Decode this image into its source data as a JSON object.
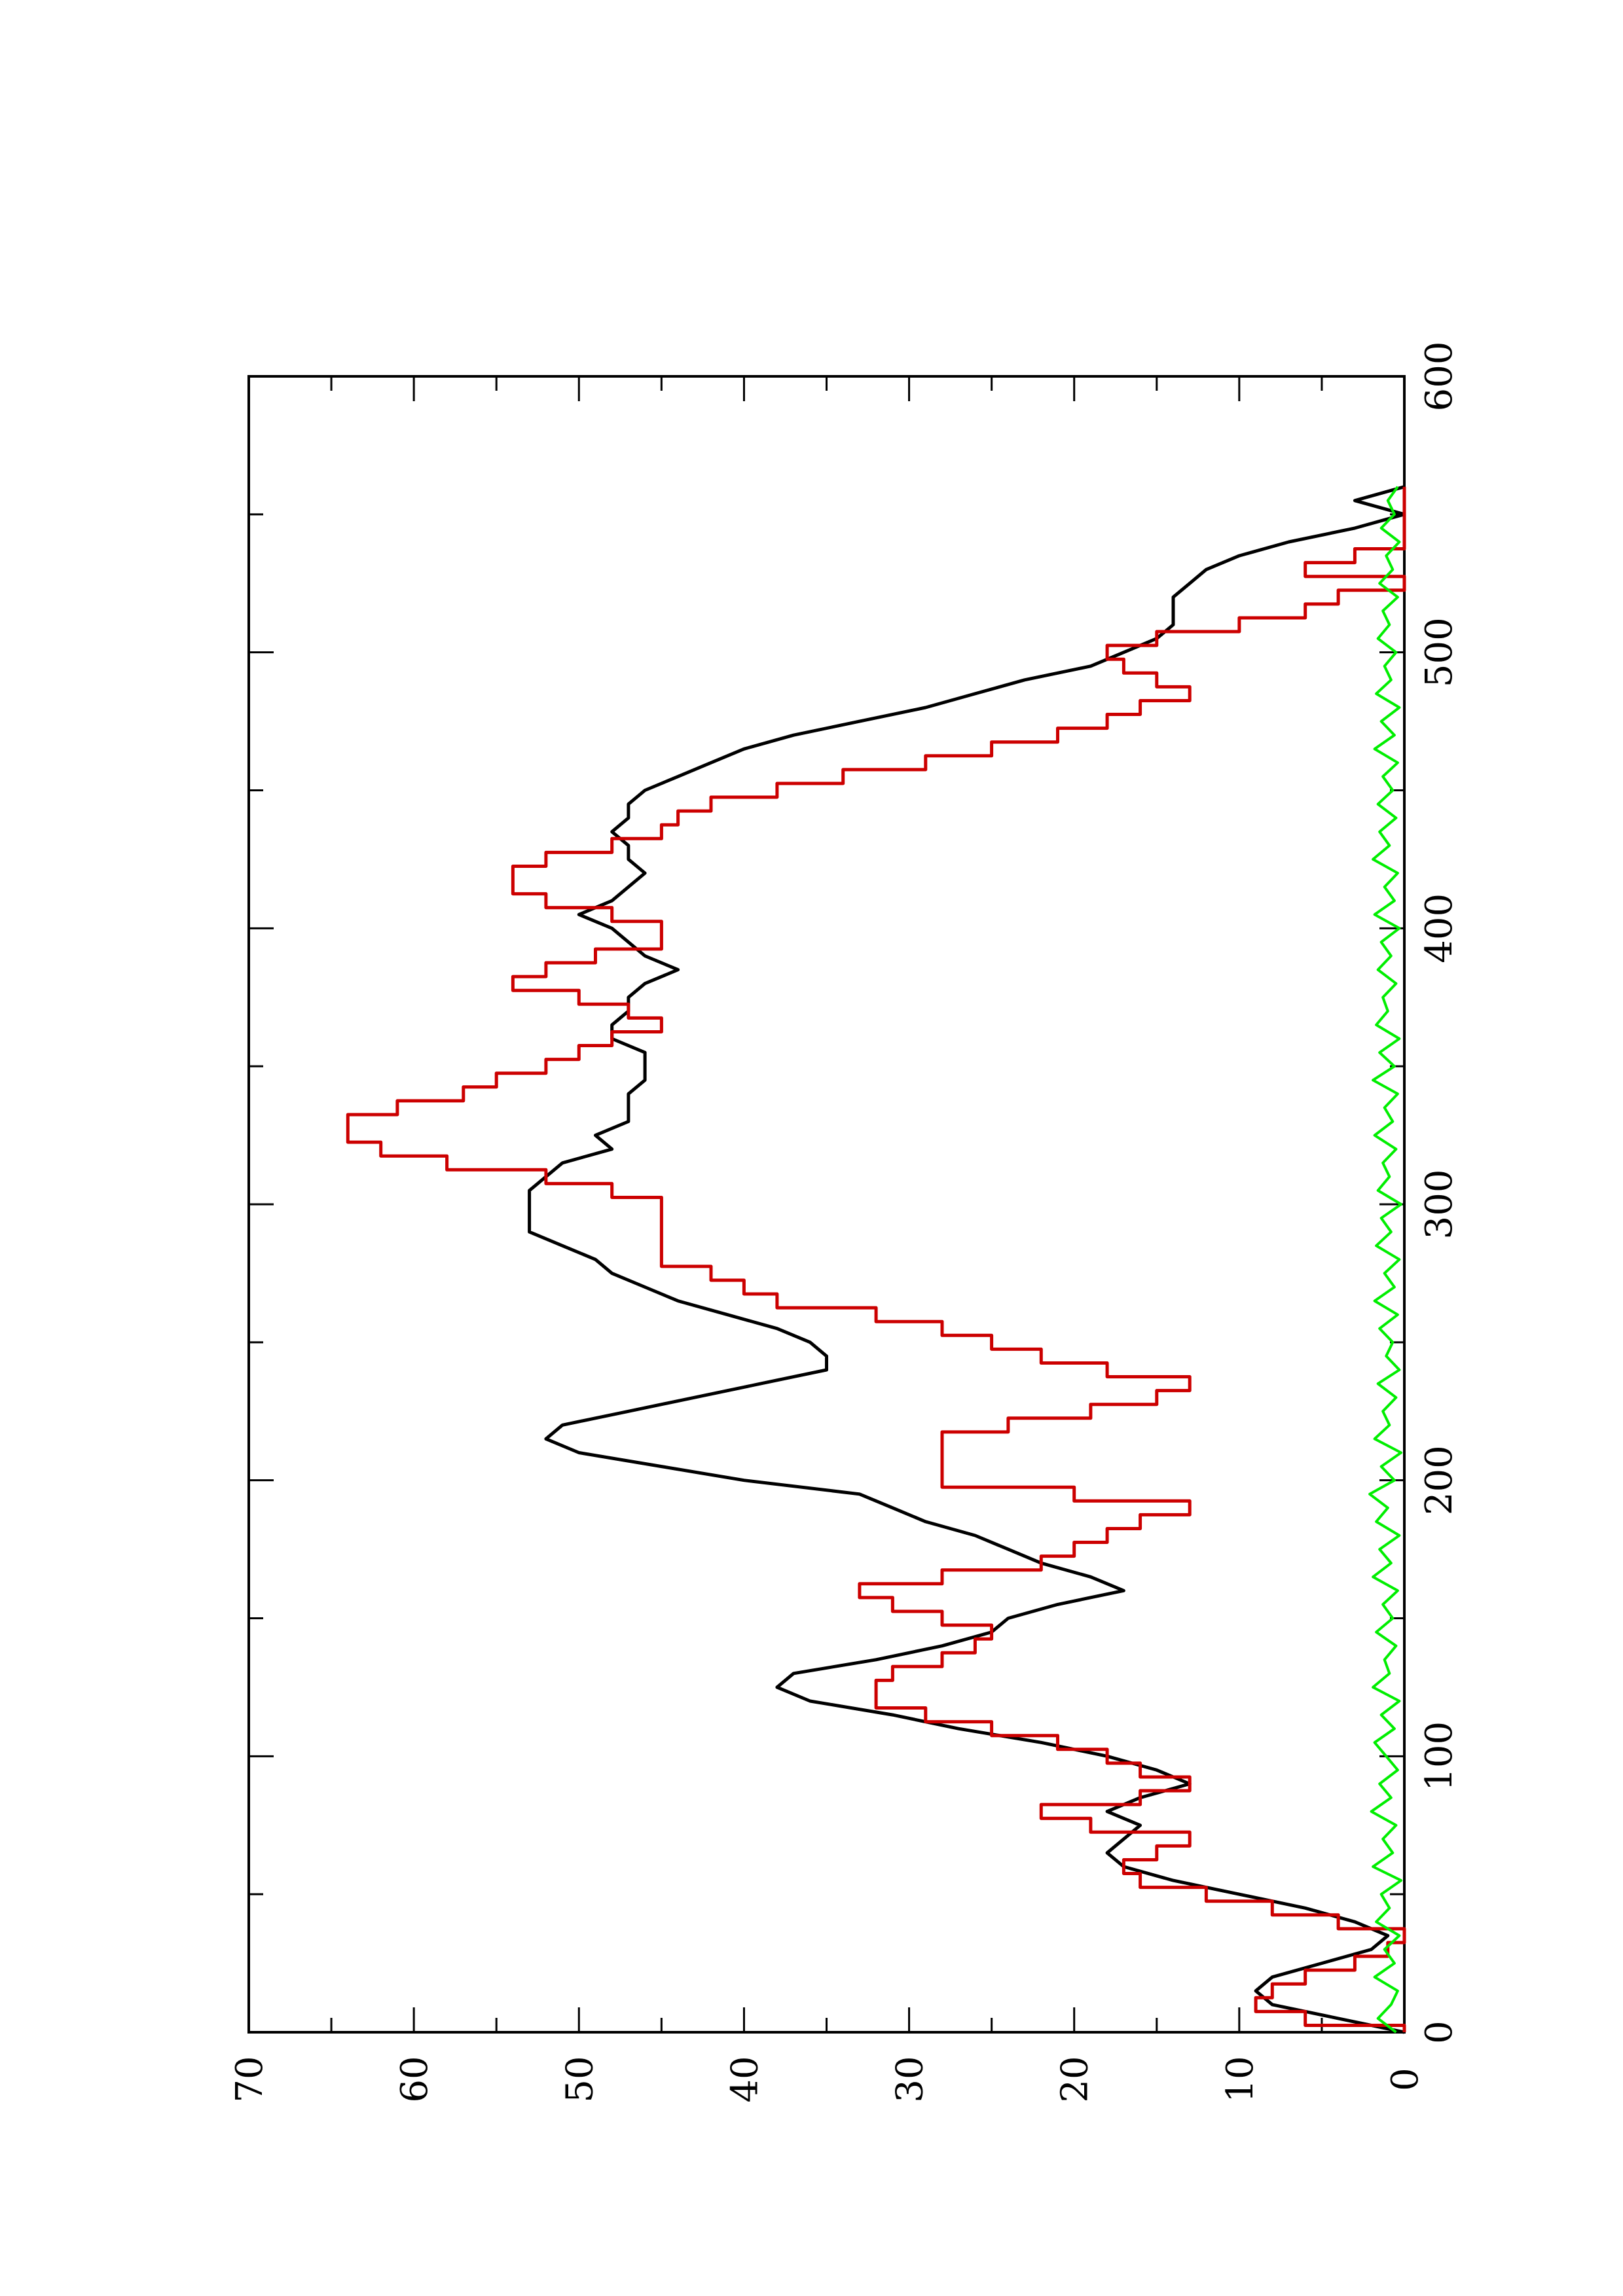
{
  "chart_data": {
    "type": "line",
    "orientation": "rotated-90-ccw",
    "title": "",
    "xlabel": "",
    "ylabel": "",
    "xlim": [
      0,
      600
    ],
    "ylim": [
      0,
      70
    ],
    "x_ticks": [
      0,
      100,
      200,
      300,
      400,
      500,
      600
    ],
    "y_ticks": [
      0,
      10,
      20,
      30,
      40,
      50,
      60,
      70
    ],
    "x_tick_labels": [
      "0",
      "100",
      "200",
      "300",
      "400",
      "500",
      "600"
    ],
    "y_tick_labels": [
      "0",
      "10",
      "20",
      "30",
      "40",
      "50",
      "60",
      "70"
    ],
    "grid": false,
    "legend": "none",
    "series": [
      {
        "color": "#000000",
        "style": "smooth",
        "x": [
          0,
          5,
          10,
          15,
          20,
          25,
          30,
          35,
          40,
          45,
          50,
          55,
          60,
          65,
          70,
          75,
          80,
          85,
          90,
          95,
          100,
          105,
          110,
          115,
          120,
          125,
          130,
          135,
          140,
          145,
          150,
          155,
          160,
          165,
          170,
          175,
          180,
          185,
          190,
          195,
          200,
          205,
          210,
          215,
          220,
          225,
          230,
          235,
          240,
          245,
          250,
          255,
          260,
          265,
          270,
          275,
          280,
          285,
          290,
          295,
          300,
          305,
          310,
          315,
          320,
          325,
          330,
          335,
          340,
          345,
          350,
          355,
          360,
          365,
          370,
          375,
          380,
          385,
          390,
          395,
          400,
          405,
          410,
          415,
          420,
          425,
          430,
          435,
          440,
          445,
          450,
          455,
          460,
          465,
          470,
          475,
          480,
          485,
          490,
          495,
          500,
          505,
          510,
          515,
          520,
          525,
          530,
          535,
          540,
          545,
          550,
          555,
          560
        ],
        "y": [
          0,
          4,
          8,
          9,
          8,
          5,
          2,
          1,
          3,
          6,
          10,
          14,
          17,
          18,
          17,
          16,
          18,
          16,
          13,
          15,
          18,
          22,
          27,
          31,
          36,
          38,
          37,
          32,
          28,
          25,
          24,
          21,
          17,
          19,
          22,
          24,
          26,
          29,
          31,
          33,
          40,
          45,
          50,
          52,
          51,
          47,
          43,
          39,
          35,
          35,
          36,
          38,
          41,
          44,
          46,
          48,
          49,
          51,
          53,
          53,
          53,
          53,
          52,
          51,
          48,
          49,
          47,
          47,
          47,
          46,
          46,
          46,
          48,
          48,
          47,
          47,
          46,
          44,
          46,
          47,
          48,
          50,
          48,
          47,
          46,
          47,
          47,
          48,
          47,
          47,
          46,
          44,
          42,
          40,
          37,
          33,
          29,
          26,
          23,
          19,
          17,
          15,
          14,
          14,
          14,
          13,
          12,
          10,
          7,
          3,
          0,
          3,
          0
        ]
      },
      {
        "color": "#cc0000",
        "style": "steps",
        "x": [
          0,
          5,
          10,
          15,
          20,
          25,
          30,
          35,
          40,
          45,
          50,
          55,
          60,
          65,
          70,
          75,
          80,
          85,
          90,
          95,
          100,
          105,
          110,
          115,
          120,
          125,
          130,
          135,
          140,
          145,
          150,
          155,
          160,
          165,
          170,
          175,
          180,
          185,
          190,
          195,
          200,
          205,
          210,
          215,
          220,
          225,
          230,
          235,
          240,
          245,
          250,
          255,
          260,
          265,
          270,
          275,
          280,
          285,
          290,
          295,
          300,
          305,
          310,
          315,
          320,
          325,
          330,
          335,
          340,
          345,
          350,
          355,
          360,
          365,
          370,
          375,
          380,
          385,
          390,
          395,
          400,
          405,
          410,
          415,
          420,
          425,
          430,
          435,
          440,
          445,
          450,
          455,
          460,
          465,
          470,
          475,
          480,
          485,
          490,
          495,
          500,
          505,
          510,
          515,
          520,
          525,
          530,
          535,
          540,
          545,
          550,
          555,
          560
        ],
        "y": [
          0,
          6,
          9,
          8,
          6,
          3,
          1,
          0,
          4,
          8,
          12,
          16,
          17,
          15,
          13,
          19,
          22,
          16,
          13,
          16,
          18,
          21,
          25,
          29,
          32,
          32,
          31,
          28,
          26,
          25,
          28,
          31,
          33,
          28,
          22,
          20,
          18,
          16,
          13,
          20,
          28,
          28,
          28,
          28,
          24,
          19,
          15,
          13,
          18,
          22,
          25,
          28,
          32,
          38,
          40,
          42,
          45,
          45,
          45,
          45,
          45,
          48,
          52,
          58,
          62,
          64,
          64,
          61,
          57,
          55,
          52,
          50,
          48,
          45,
          47,
          50,
          54,
          52,
          49,
          45,
          45,
          48,
          52,
          54,
          54,
          52,
          48,
          45,
          44,
          42,
          38,
          34,
          29,
          25,
          21,
          18,
          16,
          13,
          15,
          17,
          18,
          15,
          10,
          6,
          4,
          0,
          6,
          3,
          0,
          0,
          0,
          0,
          0
        ]
      },
      {
        "color": "#00ee00",
        "style": "noise",
        "x": [
          0,
          5,
          10,
          15,
          20,
          25,
          30,
          35,
          40,
          45,
          50,
          55,
          60,
          65,
          70,
          75,
          80,
          85,
          90,
          95,
          100,
          105,
          110,
          115,
          120,
          125,
          130,
          135,
          140,
          145,
          150,
          155,
          160,
          165,
          170,
          175,
          180,
          185,
          190,
          195,
          200,
          205,
          210,
          215,
          220,
          225,
          230,
          235,
          240,
          245,
          250,
          255,
          260,
          265,
          270,
          275,
          280,
          285,
          290,
          295,
          300,
          305,
          310,
          315,
          320,
          325,
          330,
          335,
          340,
          345,
          350,
          355,
          360,
          365,
          370,
          375,
          380,
          385,
          390,
          395,
          400,
          405,
          410,
          415,
          420,
          425,
          430,
          435,
          440,
          445,
          450,
          455,
          460,
          465,
          470,
          475,
          480,
          485,
          490,
          495,
          500,
          505,
          510,
          515,
          520,
          525,
          530,
          535,
          540,
          545,
          550,
          555,
          560
        ],
        "y": [
          0.5,
          1.6,
          0.8,
          0.4,
          1.8,
          0.6,
          1.2,
          0.3,
          1.7,
          0.9,
          1.4,
          0.2,
          1.9,
          0.7,
          1.3,
          0.5,
          2.0,
          0.8,
          1.5,
          0.4,
          1.1,
          1.8,
          0.6,
          1.4,
          0.3,
          1.9,
          0.9,
          1.2,
          0.5,
          1.7,
          0.7,
          1.3,
          0.4,
          1.9,
          0.8,
          1.5,
          0.3,
          1.7,
          1.0,
          2.1,
          0.6,
          1.4,
          0.2,
          1.8,
          0.9,
          1.3,
          0.5,
          1.6,
          0.3,
          1.1,
          0.7,
          1.5,
          0.4,
          1.8,
          0.6,
          1.2,
          0.3,
          1.7,
          0.8,
          1.4,
          0.2,
          1.6,
          0.9,
          1.3,
          0.5,
          1.8,
          0.7,
          1.2,
          0.4,
          1.9,
          0.6,
          1.5,
          0.3,
          1.7,
          1.0,
          1.3,
          0.5,
          1.6,
          0.8,
          1.4,
          0.3,
          1.8,
          0.6,
          1.2,
          0.4,
          1.9,
          0.9,
          1.5,
          0.5,
          1.6,
          0.7,
          1.3,
          0.4,
          1.8,
          0.6,
          1.4,
          0.3,
          1.7,
          0.8,
          1.2,
          0.5,
          1.6,
          0.9,
          1.3,
          0.4,
          1.5,
          0.7,
          1.1,
          0.3,
          1.4,
          0.6,
          1.0,
          0.4
        ]
      }
    ]
  }
}
